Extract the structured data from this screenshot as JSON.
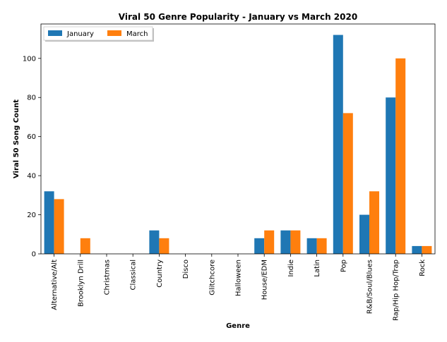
{
  "chart_data": {
    "type": "bar",
    "title": "Viral 50 Genre Popularity - January vs March 2020",
    "xlabel": "Genre",
    "ylabel": "Viral 50 Song Count",
    "categories": [
      "Alternative/Alt",
      "Brooklyn Drill",
      "Christmas",
      "Classical",
      "Country",
      "Disco",
      "Glitchcore",
      "Halloween",
      "House/EDM",
      "Indie",
      "Latin",
      "Pop",
      "R&B/Soul/Blues",
      "Rap/Hip Hop/Trap",
      "Rock"
    ],
    "series": [
      {
        "name": "January",
        "color": "#1f77b4",
        "values": [
          32,
          0,
          0,
          0,
          12,
          0,
          0,
          0,
          8,
          12,
          8,
          112,
          20,
          80,
          4
        ]
      },
      {
        "name": "March",
        "color": "#ff7f0e",
        "values": [
          28,
          8,
          0,
          0,
          8,
          0,
          0,
          0,
          12,
          12,
          8,
          72,
          32,
          100,
          4
        ]
      }
    ],
    "ylim": [
      0,
      117.6
    ],
    "yticks": [
      0,
      20,
      40,
      60,
      80,
      100
    ],
    "grid": false,
    "legend": "top-left"
  }
}
